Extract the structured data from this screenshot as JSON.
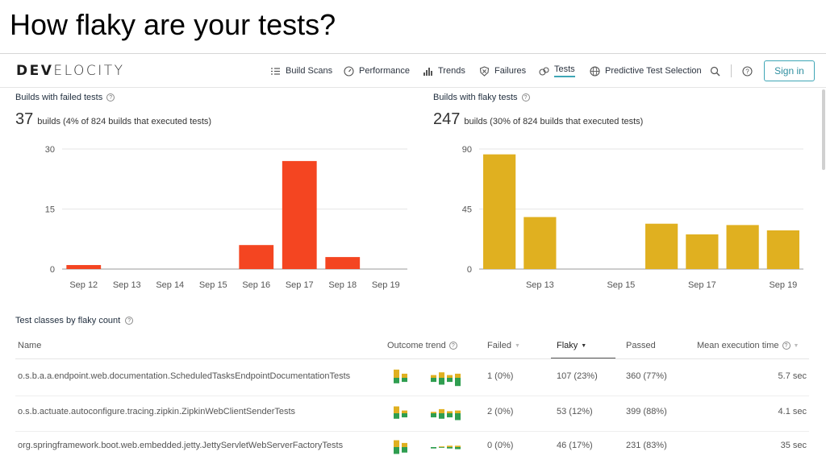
{
  "slide": {
    "title": "How flaky are your tests?"
  },
  "nav": {
    "logo_bold": "DEV",
    "logo_light": "ELOCITY",
    "items": [
      {
        "label": "Build Scans",
        "icon": "list-icon"
      },
      {
        "label": "Performance",
        "icon": "gauge-icon"
      },
      {
        "label": "Trends",
        "icon": "bar-chart-icon"
      },
      {
        "label": "Failures",
        "icon": "shield-x-icon"
      },
      {
        "label": "Tests",
        "icon": "flask-icon"
      },
      {
        "label": "Predictive Test Selection",
        "icon": "globe-icon"
      }
    ],
    "active": "Tests",
    "sign_in": "Sign in"
  },
  "failed_panel": {
    "title": "Builds with failed tests",
    "count": "37",
    "summary": "builds (4% of 824 builds that executed tests)"
  },
  "flaky_panel": {
    "title": "Builds with flaky tests",
    "count": "247",
    "summary": "builds (30% of 824 builds that executed tests)"
  },
  "chart_data": [
    {
      "type": "bar",
      "title": "Builds with failed tests",
      "categories": [
        "Sep 12",
        "Sep 13",
        "Sep 14",
        "Sep 15",
        "Sep 16",
        "Sep 17",
        "Sep 18",
        "Sep 19"
      ],
      "tick_labels": [
        "Sep 12",
        "Sep 13",
        "Sep 14",
        "Sep 15",
        "Sep 16",
        "Sep 17",
        "Sep 18",
        "Sep 19"
      ],
      "values": [
        1,
        0,
        0,
        0,
        6,
        27,
        3,
        0
      ],
      "yticks": [
        0,
        15,
        30
      ],
      "ylim": [
        0,
        30
      ],
      "color": "#f44521",
      "grid": true
    },
    {
      "type": "bar",
      "title": "Builds with flaky tests",
      "categories": [
        "Sep 12",
        "Sep 13",
        "Sep 14",
        "Sep 15",
        "Sep 16",
        "Sep 17",
        "Sep 18",
        "Sep 19"
      ],
      "tick_labels": [
        "",
        "Sep 13",
        "",
        "Sep 15",
        "",
        "Sep 17",
        "",
        "Sep 19"
      ],
      "values": [
        86,
        39,
        0,
        0,
        34,
        26,
        33,
        29
      ],
      "yticks": [
        0,
        45,
        90
      ],
      "ylim": [
        0,
        90
      ],
      "color": "#e0b020",
      "grid": true
    }
  ],
  "table": {
    "title": "Test classes by flaky count",
    "columns": {
      "name": "Name",
      "trend": "Outcome trend",
      "failed": "Failed",
      "flaky": "Flaky",
      "passed": "Passed",
      "mean": "Mean execution time"
    },
    "rows": [
      {
        "name": "o.s.b.a.a.endpoint.web.documentation.ScheduledTasksEndpointDocumentationTests",
        "failed": "1 (0%)",
        "flaky": "107 (23%)",
        "passed": "360 (77%)",
        "mean": "5.7 sec",
        "trend": [
          [
            0.6,
            0.4
          ],
          [
            0.3,
            0.3
          ],
          [
            0,
            0
          ],
          [
            0,
            0
          ],
          [
            0.2,
            0.3
          ],
          [
            0.4,
            0.5
          ],
          [
            0.2,
            0.3
          ],
          [
            0.3,
            0.6
          ]
        ]
      },
      {
        "name": "o.s.b.actuate.autoconfigure.tracing.zipkin.ZipkinWebClientSenderTests",
        "failed": "2 (0%)",
        "flaky": "53 (12%)",
        "passed": "399 (88%)",
        "mean": "4.1 sec",
        "trend": [
          [
            0.5,
            0.4
          ],
          [
            0.2,
            0.3
          ],
          [
            0,
            0
          ],
          [
            0,
            0
          ],
          [
            0.1,
            0.3
          ],
          [
            0.3,
            0.4
          ],
          [
            0.15,
            0.3
          ],
          [
            0.2,
            0.5
          ]
        ]
      },
      {
        "name": "org.springframework.boot.web.embedded.jetty.JettyServletWebServerFactoryTests",
        "failed": "0 (0%)",
        "flaky": "46 (17%)",
        "passed": "231 (83%)",
        "mean": "35 sec",
        "trend": [
          [
            0.5,
            0.5
          ],
          [
            0.3,
            0.4
          ],
          [
            0,
            0
          ],
          [
            0,
            0
          ],
          [
            0,
            0.1
          ],
          [
            0.05,
            0.05
          ],
          [
            0.1,
            0.1
          ],
          [
            0.1,
            0.15
          ]
        ]
      }
    ]
  },
  "colors": {
    "failed": "#f44521",
    "flaky": "#e0b020",
    "passed": "#2f9e50",
    "accent": "#3fa6b6"
  }
}
